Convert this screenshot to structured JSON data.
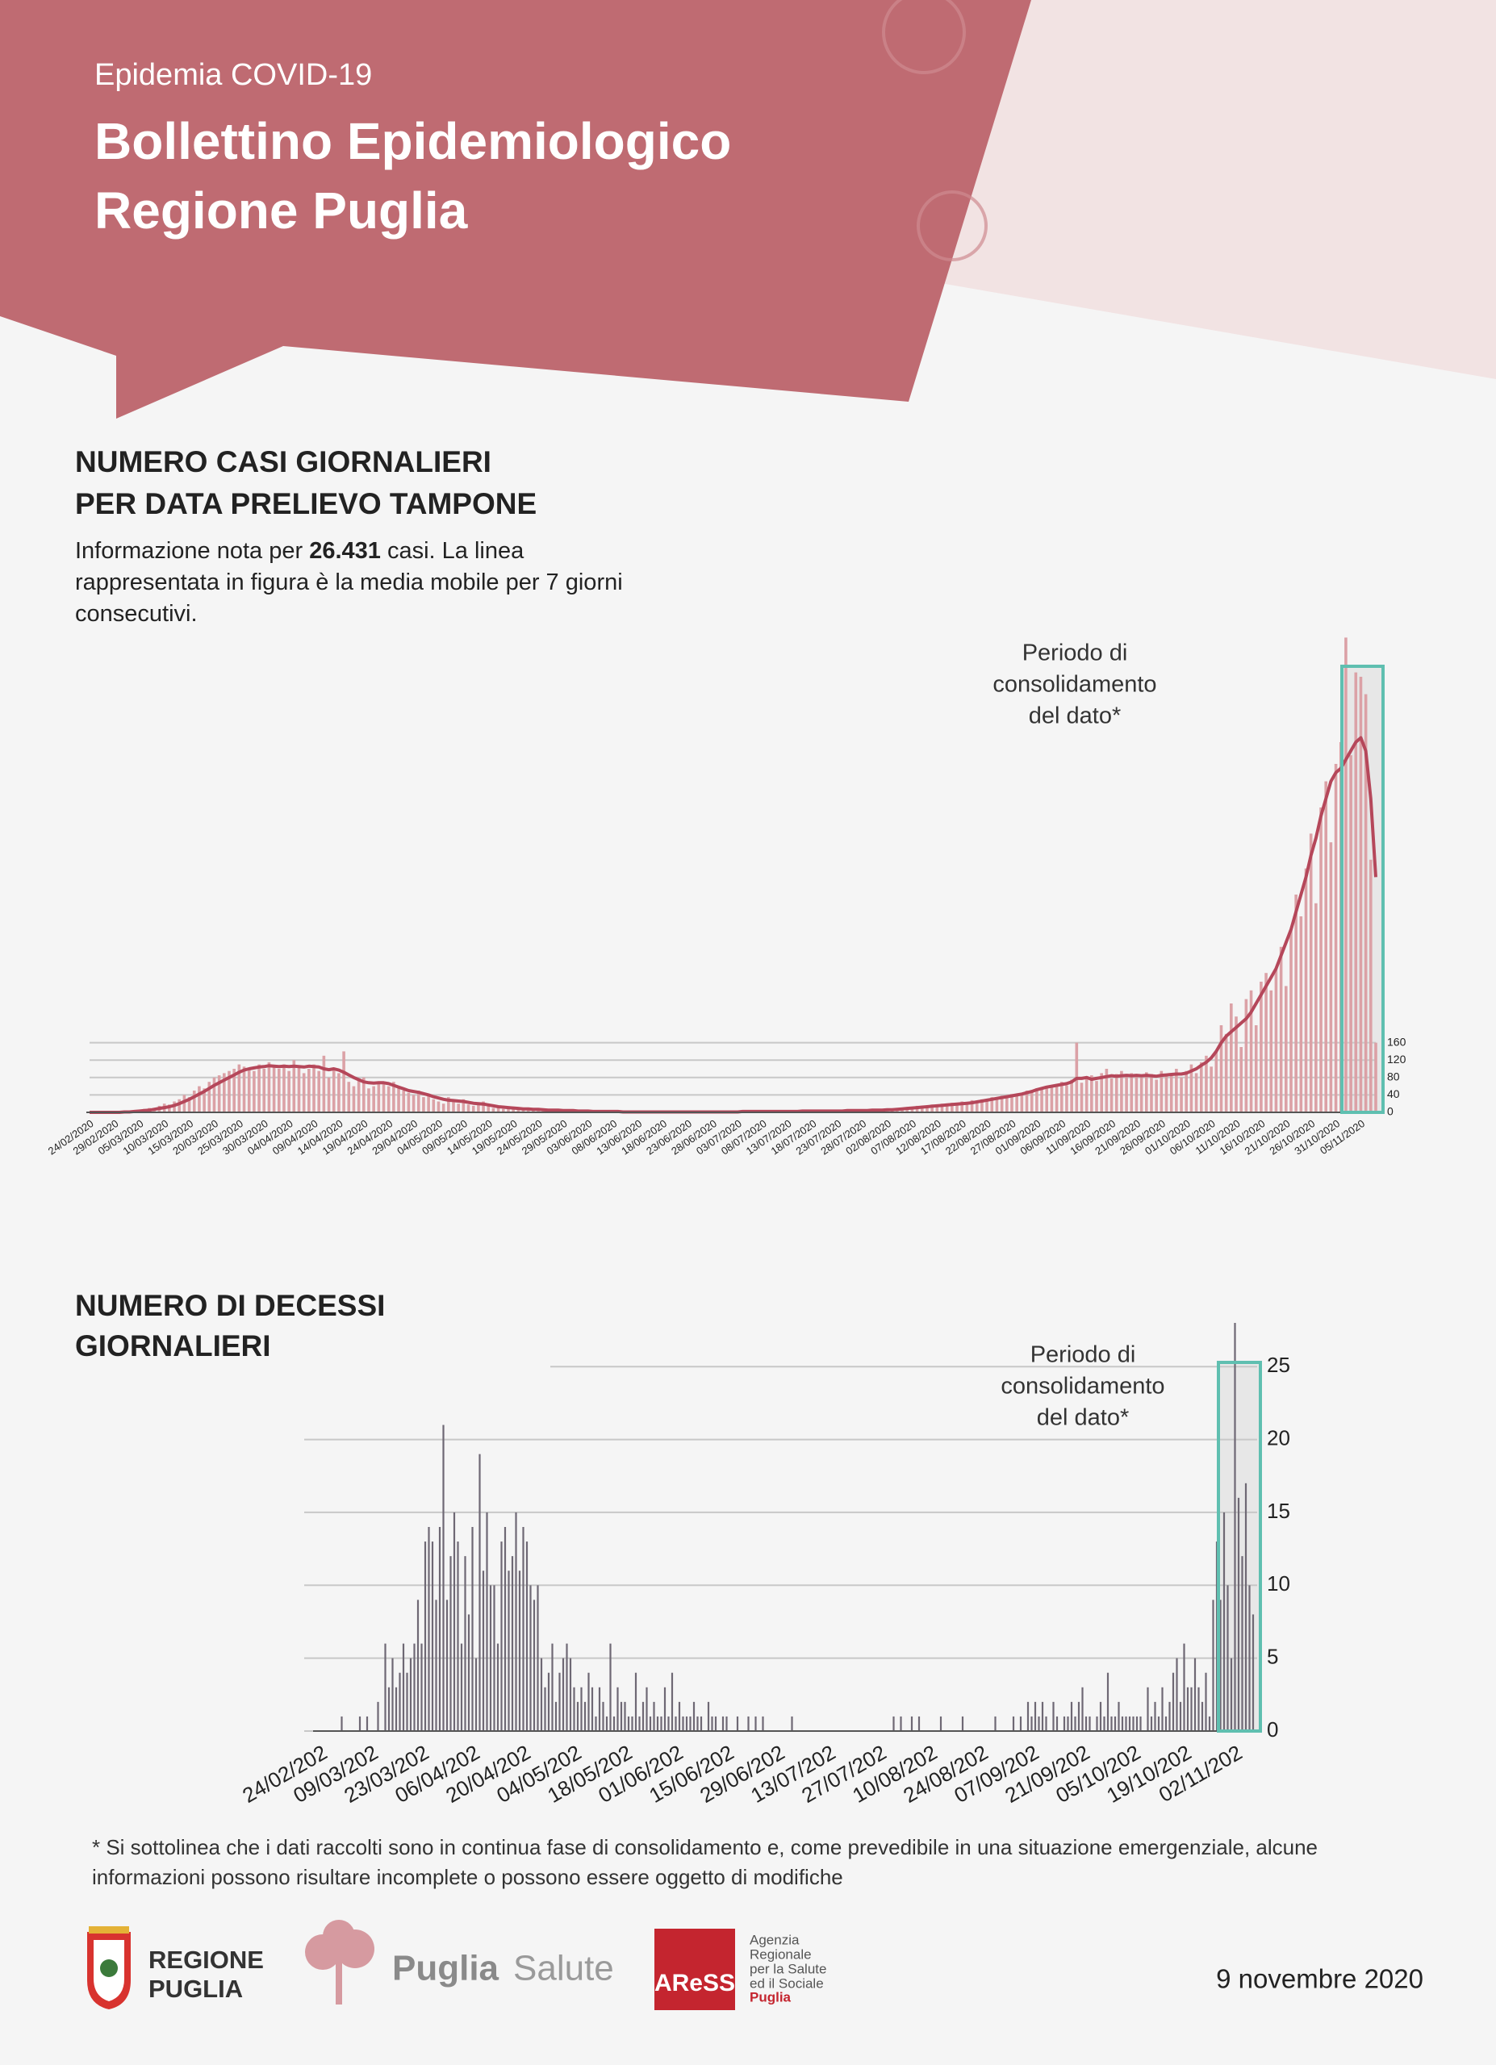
{
  "header": {
    "kicker": "Epidemia COVID-19",
    "title_lines": [
      "Bollettino Epidemiologico",
      "Regione Puglia"
    ]
  },
  "intro": {
    "before": "Informazione nota per",
    "number": "26.431",
    "after": "casi. La linea rappresentata in figura è la media mobile per 7 giorni consecutivi."
  },
  "chart_data": [
    {
      "type": "bar",
      "title_lines": [
        "NUMERO CASI GIORNALIERI",
        "PER DATA PRELIEVO TAMPONE"
      ],
      "annotation": [
        "Periodo di",
        "consolidamento",
        "del dato*"
      ],
      "color": "#dba1a6",
      "line_color": "#b5475a",
      "highlight_color": "#5fbfb0",
      "ylim": [
        0,
        1100
      ],
      "yticks": [
        0,
        40,
        80,
        120,
        160
      ],
      "grid": true,
      "categories": [
        "24/02/2020",
        null,
        null,
        null,
        null,
        "29/02/2020",
        null,
        null,
        null,
        null,
        "05/03/2020",
        null,
        null,
        null,
        null,
        "10/03/2020",
        null,
        null,
        null,
        null,
        "15/03/2020",
        null,
        null,
        null,
        null,
        "20/03/2020",
        null,
        null,
        null,
        null,
        "25/03/2020",
        null,
        null,
        null,
        null,
        "30/03/2020",
        null,
        null,
        null,
        null,
        "04/04/2020",
        null,
        null,
        null,
        null,
        "09/04/2020",
        null,
        null,
        null,
        null,
        "14/04/2020",
        null,
        null,
        null,
        null,
        "19/04/2020",
        null,
        null,
        null,
        null,
        "24/04/2020",
        null,
        null,
        null,
        null,
        "29/04/2020",
        null,
        null,
        null,
        null,
        "04/05/2020",
        null,
        null,
        null,
        null,
        "09/05/2020",
        null,
        null,
        null,
        null,
        "14/05/2020",
        null,
        null,
        null,
        null,
        "19/05/2020",
        null,
        null,
        null,
        null,
        "24/05/2020",
        null,
        null,
        null,
        null,
        "29/05/2020",
        null,
        null,
        null,
        null,
        "03/06/2020",
        null,
        null,
        null,
        null,
        "08/06/2020",
        null,
        null,
        null,
        null,
        "13/06/2020",
        null,
        null,
        null,
        null,
        "18/06/2020",
        null,
        null,
        null,
        null,
        "23/06/2020",
        null,
        null,
        null,
        null,
        "28/06/2020",
        null,
        null,
        null,
        null,
        "03/07/2020",
        null,
        null,
        null,
        null,
        "08/07/2020",
        null,
        null,
        null,
        null,
        "13/07/2020",
        null,
        null,
        null,
        null,
        "18/07/2020",
        null,
        null,
        null,
        null,
        "23/07/2020",
        null,
        null,
        null,
        null,
        "28/07/2020",
        null,
        null,
        null,
        null,
        "02/08/2020",
        null,
        null,
        null,
        null,
        "07/08/2020",
        null,
        null,
        null,
        null,
        "12/08/2020",
        null,
        null,
        null,
        null,
        "17/08/2020",
        null,
        null,
        null,
        null,
        "22/08/2020",
        null,
        null,
        null,
        null,
        "27/08/2020",
        null,
        null,
        null,
        null,
        "01/09/2020",
        null,
        null,
        null,
        null,
        "06/09/2020",
        null,
        null,
        null,
        null,
        "11/09/2020",
        null,
        null,
        null,
        null,
        "16/09/2020",
        null,
        null,
        null,
        null,
        "21/09/2020",
        null,
        null,
        null,
        null,
        "26/09/2020",
        null,
        null,
        null,
        null,
        "01/10/2020",
        null,
        null,
        null,
        null,
        "06/10/2020",
        null,
        null,
        null,
        null,
        "11/10/2020",
        null,
        null,
        null,
        null,
        "16/10/2020",
        null,
        null,
        null,
        null,
        "21/10/2020",
        null,
        null,
        null,
        null,
        "26/10/2020",
        null,
        null,
        null,
        null,
        "31/10/2020",
        null,
        null,
        null,
        null,
        "05/11/2020",
        null,
        null,
        null
      ],
      "values": [
        0,
        0,
        0,
        1,
        0,
        0,
        1,
        2,
        3,
        1,
        5,
        8,
        10,
        6,
        15,
        20,
        18,
        25,
        30,
        40,
        35,
        50,
        60,
        55,
        70,
        80,
        85,
        90,
        95,
        100,
        110,
        105,
        100,
        95,
        110,
        100,
        115,
        105,
        100,
        110,
        95,
        120,
        105,
        90,
        100,
        110,
        95,
        130,
        80,
        100,
        90,
        140,
        70,
        60,
        75,
        80,
        55,
        60,
        70,
        65,
        60,
        70,
        55,
        50,
        45,
        40,
        50,
        35,
        40,
        30,
        25,
        20,
        35,
        25,
        20,
        30,
        18,
        15,
        20,
        25,
        15,
        10,
        12,
        8,
        10,
        12,
        6,
        8,
        10,
        5,
        8,
        6,
        4,
        5,
        6,
        3,
        5,
        4,
        3,
        4,
        2,
        3,
        1,
        2,
        3,
        1,
        2,
        0,
        1,
        2,
        1,
        0,
        1,
        2,
        1,
        0,
        1,
        1,
        0,
        2,
        1,
        0,
        1,
        3,
        1,
        0,
        2,
        1,
        1,
        2,
        0,
        1,
        3,
        1,
        2,
        1,
        0,
        2,
        3,
        1,
        2,
        4,
        2,
        3,
        5,
        2,
        3,
        4,
        1,
        6,
        3,
        2,
        5,
        4,
        3,
        6,
        5,
        4,
        7,
        5,
        8,
        6,
        10,
        7,
        12,
        9,
        15,
        11,
        14,
        18,
        13,
        20,
        16,
        22,
        19,
        25,
        20,
        28,
        24,
        30,
        26,
        35,
        30,
        38,
        34,
        42,
        40,
        45,
        50,
        48,
        55,
        52,
        60,
        58,
        65,
        70,
        62,
        75,
        160,
        68,
        80,
        85,
        72,
        90,
        100,
        78,
        88,
        95,
        82,
        90,
        85,
        80,
        92,
        88,
        75,
        95,
        85,
        90,
        100,
        80,
        95,
        110,
        90,
        115,
        130,
        105,
        140,
        200,
        180,
        250,
        220,
        150,
        260,
        280,
        200,
        300,
        320,
        280,
        330,
        380,
        290,
        420,
        500,
        450,
        560,
        640,
        480,
        700,
        760,
        620,
        800,
        850,
        1090,
        820,
        1010,
        1000,
        960,
        580,
        160
      ],
      "moving_average": [
        0,
        0,
        0,
        0,
        0,
        0,
        0,
        1,
        1,
        2,
        3,
        4,
        5,
        7,
        9,
        11,
        13,
        16,
        20,
        25,
        30,
        36,
        42,
        48,
        55,
        62,
        68,
        74,
        80,
        86,
        92,
        97,
        100,
        102,
        104,
        105,
        107,
        106,
        105,
        106,
        105,
        106,
        105,
        104,
        106,
        105,
        104,
        100,
        98,
        100,
        97,
        92,
        86,
        80,
        75,
        70,
        68,
        67,
        68,
        68,
        66,
        62,
        58,
        54,
        50,
        48,
        46,
        43,
        40,
        36,
        33,
        30,
        28,
        27,
        26,
        25,
        23,
        21,
        20,
        19,
        17,
        15,
        13,
        12,
        11,
        10,
        9,
        8,
        8,
        7,
        7,
        6,
        5,
        5,
        5,
        4,
        4,
        4,
        3,
        3,
        3,
        2,
        2,
        2,
        2,
        2,
        2,
        1,
        1,
        1,
        1,
        1,
        1,
        1,
        1,
        1,
        1,
        1,
        1,
        1,
        1,
        1,
        1,
        1,
        1,
        1,
        1,
        1,
        1,
        1,
        1,
        2,
        2,
        2,
        2,
        2,
        2,
        2,
        2,
        2,
        2,
        2,
        2,
        3,
        3,
        3,
        3,
        3,
        3,
        3,
        3,
        3,
        4,
        4,
        4,
        4,
        4,
        5,
        5,
        5,
        6,
        6,
        7,
        8,
        9,
        10,
        11,
        12,
        13,
        14,
        15,
        16,
        17,
        18,
        19,
        20,
        21,
        22,
        24,
        26,
        28,
        30,
        32,
        34,
        36,
        38,
        40,
        42,
        45,
        48,
        52,
        55,
        58,
        60,
        62,
        64,
        66,
        70,
        78,
        78,
        80,
        76,
        78,
        80,
        82,
        84,
        83,
        84,
        85,
        84,
        85,
        84,
        85,
        84,
        83,
        85,
        86,
        87,
        88,
        88,
        90,
        95,
        100,
        108,
        115,
        125,
        140,
        160,
        175,
        185,
        195,
        205,
        215,
        230,
        250,
        270,
        290,
        310,
        330,
        360,
        390,
        420,
        460,
        500,
        540,
        590,
        630,
        680,
        720,
        760,
        780,
        790,
        810,
        830,
        850,
        860,
        830,
        720,
        540
      ]
    },
    {
      "type": "bar",
      "title_lines": [
        "NUMERO DI DECESSI",
        "GIORNALIERI"
      ],
      "annotation": [
        "Periodo di",
        "consolidamento",
        "del dato*"
      ],
      "color": "#6e6874",
      "highlight_color": "#5fbfb0",
      "ylim": [
        0,
        28
      ],
      "yticks": [
        0,
        5,
        10,
        15,
        20,
        25
      ],
      "grid": true,
      "categories": [
        "24/02/202",
        null,
        null,
        null,
        null,
        null,
        null,
        null,
        null,
        null,
        null,
        null,
        null,
        null,
        "09/03/202",
        null,
        null,
        null,
        null,
        null,
        null,
        null,
        null,
        null,
        null,
        null,
        null,
        null,
        "23/03/202",
        null,
        null,
        null,
        null,
        null,
        null,
        null,
        null,
        null,
        null,
        null,
        null,
        null,
        "06/04/202",
        null,
        null,
        null,
        null,
        null,
        null,
        null,
        null,
        null,
        null,
        null,
        null,
        null,
        "20/04/202",
        null,
        null,
        null,
        null,
        null,
        null,
        null,
        null,
        null,
        null,
        null,
        null,
        null,
        "04/05/202",
        null,
        null,
        null,
        null,
        null,
        null,
        null,
        null,
        null,
        null,
        null,
        null,
        null,
        "18/05/202",
        null,
        null,
        null,
        null,
        null,
        null,
        null,
        null,
        null,
        null,
        null,
        null,
        null,
        "01/06/202",
        null,
        null,
        null,
        null,
        null,
        null,
        null,
        null,
        null,
        null,
        null,
        null,
        null,
        "15/06/202",
        null,
        null,
        null,
        null,
        null,
        null,
        null,
        null,
        null,
        null,
        null,
        null,
        null,
        "29/06/202",
        null,
        null,
        null,
        null,
        null,
        null,
        null,
        null,
        null,
        null,
        null,
        null,
        null,
        "13/07/202",
        null,
        null,
        null,
        null,
        null,
        null,
        null,
        null,
        null,
        null,
        null,
        null,
        null,
        "27/07/202",
        null,
        null,
        null,
        null,
        null,
        null,
        null,
        null,
        null,
        null,
        null,
        null,
        null,
        "10/08/202",
        null,
        null,
        null,
        null,
        null,
        null,
        null,
        null,
        null,
        null,
        null,
        null,
        null,
        "24/08/202",
        null,
        null,
        null,
        null,
        null,
        null,
        null,
        null,
        null,
        null,
        null,
        null,
        null,
        "07/09/202",
        null,
        null,
        null,
        null,
        null,
        null,
        null,
        null,
        null,
        null,
        null,
        null,
        null,
        "21/09/202",
        null,
        null,
        null,
        null,
        null,
        null,
        null,
        null,
        null,
        null,
        null,
        null,
        null,
        "05/10/202",
        null,
        null,
        null,
        null,
        null,
        null,
        null,
        null,
        null,
        null,
        null,
        null,
        null,
        "19/10/202",
        null,
        null,
        null,
        null,
        null,
        null,
        null,
        null,
        null,
        null,
        null,
        null,
        null,
        "02/11/202",
        null,
        null,
        null,
        null,
        null,
        null
      ],
      "values": [
        0,
        0,
        0,
        0,
        0,
        0,
        0,
        1,
        0,
        0,
        0,
        0,
        1,
        0,
        1,
        0,
        0,
        2,
        0,
        6,
        3,
        5,
        3,
        4,
        6,
        4,
        5,
        6,
        9,
        6,
        13,
        14,
        13,
        9,
        14,
        21,
        9,
        12,
        15,
        13,
        6,
        12,
        8,
        14,
        5,
        19,
        11,
        15,
        10,
        10,
        6,
        13,
        14,
        11,
        12,
        15,
        11,
        14,
        13,
        10,
        9,
        10,
        5,
        3,
        4,
        6,
        2,
        4,
        5,
        6,
        5,
        3,
        2,
        3,
        2,
        4,
        3,
        1,
        3,
        2,
        1,
        6,
        1,
        3,
        2,
        2,
        1,
        1,
        4,
        1,
        2,
        3,
        1,
        2,
        1,
        1,
        3,
        1,
        4,
        1,
        2,
        1,
        1,
        1,
        2,
        1,
        1,
        0,
        2,
        1,
        1,
        0,
        1,
        1,
        0,
        0,
        1,
        0,
        0,
        1,
        0,
        1,
        0,
        1,
        0,
        0,
        0,
        0,
        0,
        0,
        0,
        1,
        0,
        0,
        0,
        0,
        0,
        0,
        0,
        0,
        0,
        0,
        0,
        0,
        0,
        0,
        0,
        0,
        0,
        0,
        0,
        0,
        0,
        0,
        0,
        0,
        0,
        0,
        0,
        1,
        0,
        1,
        0,
        0,
        1,
        0,
        1,
        0,
        0,
        0,
        0,
        0,
        1,
        0,
        0,
        0,
        0,
        0,
        1,
        0,
        0,
        0,
        0,
        0,
        0,
        0,
        0,
        1,
        0,
        0,
        0,
        0,
        1,
        0,
        1,
        0,
        2,
        1,
        2,
        1,
        2,
        1,
        0,
        2,
        1,
        0,
        1,
        1,
        2,
        1,
        2,
        3,
        1,
        1,
        0,
        1,
        2,
        1,
        4,
        1,
        1,
        2,
        1,
        1,
        1,
        1,
        1,
        1,
        0,
        3,
        1,
        2,
        1,
        3,
        1,
        2,
        4,
        5,
        2,
        6,
        3,
        3,
        5,
        3,
        2,
        4,
        1,
        9,
        13,
        9,
        15,
        10,
        5,
        28,
        16,
        12,
        17,
        10,
        8
      ]
    }
  ],
  "footnote": "* Si sottolinea che i dati raccolti sono in continua fase di consolidamento e, come prevedibile in una situazione emergenziale, alcune informazioni possono risultare incomplete o possono essere oggetto di modifiche",
  "footer": {
    "regione": [
      "REGIONE",
      "PUGLIA"
    ],
    "puglia": "Puglia",
    "salute": "Salute",
    "aress": "AReSS",
    "agenzia": [
      "Agenzia",
      "Regionale",
      "per la Salute",
      "ed il Sociale"
    ],
    "agenzia_region": "Puglia",
    "date": "9 novembre 2020"
  }
}
